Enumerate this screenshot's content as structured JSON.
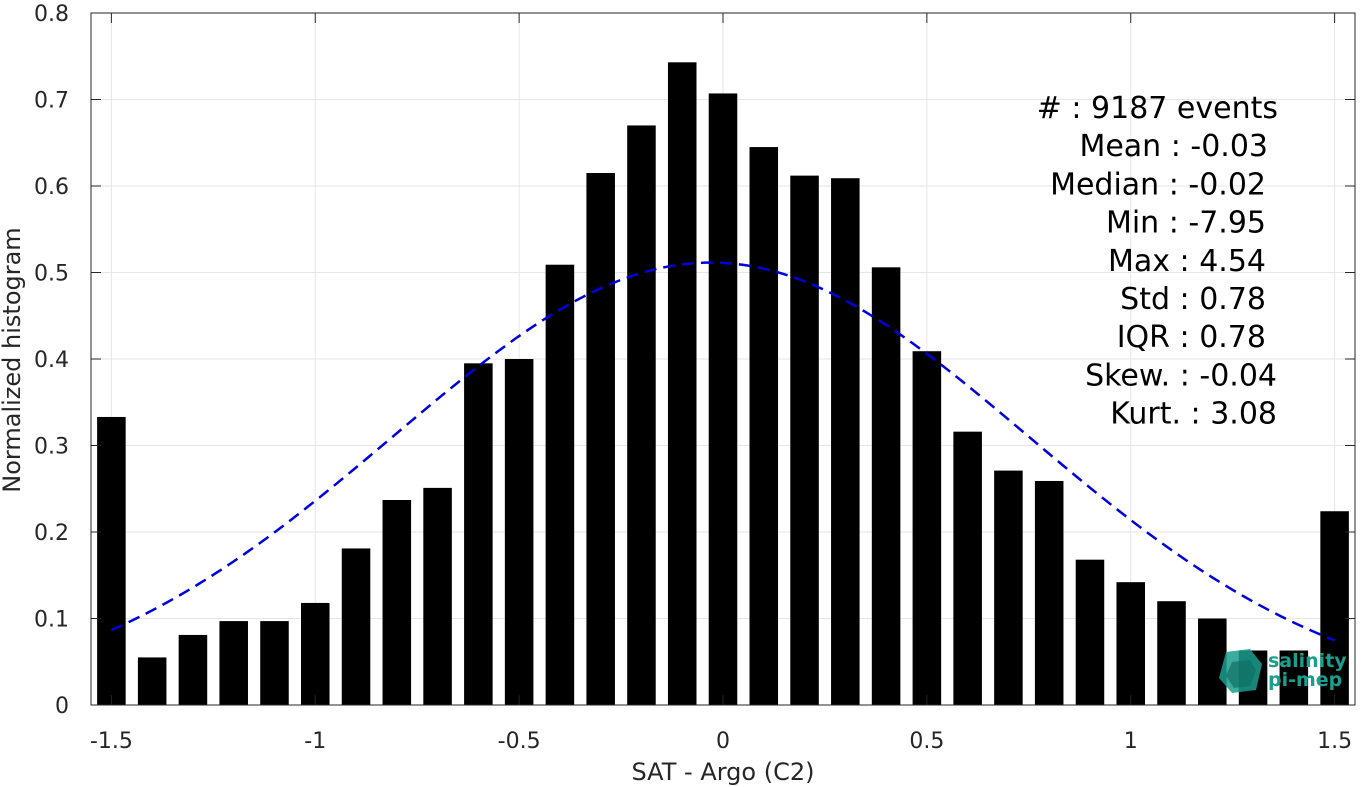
{
  "chart_data": {
    "type": "bar",
    "xlabel": "SAT - Argo (C2)",
    "ylabel": "Normalized histogram",
    "xlim": [
      -1.55,
      1.55
    ],
    "ylim": [
      0,
      0.8
    ],
    "xticks": [
      -1.5,
      -1,
      -0.5,
      0,
      0.5,
      1,
      1.5
    ],
    "xtick_labels": [
      "-1.5",
      "-1",
      "-0.5",
      "0",
      "0.5",
      "1",
      "1.5"
    ],
    "yticks": [
      0,
      0.1,
      0.2,
      0.3,
      0.4,
      0.5,
      0.6,
      0.7,
      0.8
    ],
    "ytick_labels": [
      "0",
      "0.1",
      "0.2",
      "0.3",
      "0.4",
      "0.5",
      "0.6",
      "0.7",
      "0.8"
    ],
    "grid": true,
    "bar_color": "#000000",
    "bars": {
      "x": [
        -1.5,
        -1.4,
        -1.3,
        -1.2,
        -1.1,
        -1.0,
        -0.9,
        -0.8,
        -0.7,
        -0.6,
        -0.5,
        -0.4,
        -0.3,
        -0.2,
        -0.1,
        0.0,
        0.1,
        0.2,
        0.3,
        0.4,
        0.5,
        0.6,
        0.7,
        0.8,
        0.9,
        1.0,
        1.1,
        1.2,
        1.3,
        1.4,
        1.5
      ],
      "values": [
        0.333,
        0.055,
        0.081,
        0.097,
        0.097,
        0.118,
        0.181,
        0.237,
        0.251,
        0.395,
        0.4,
        0.509,
        0.615,
        0.67,
        0.743,
        0.707,
        0.645,
        0.612,
        0.609,
        0.506,
        0.409,
        0.316,
        0.271,
        0.259,
        0.168,
        0.142,
        0.12,
        0.1,
        0.063,
        0.063,
        0.224
      ],
      "width": 0.07
    },
    "fit_curve": {
      "kind": "gaussian",
      "mean": -0.03,
      "std": 0.78,
      "x_range": [
        -1.5,
        1.5
      ],
      "color": "#0000dd",
      "line_style": "dashed"
    },
    "annotations": [
      "#  : 9187 events",
      "Mean : -0.03",
      "Median : -0.02",
      "Min : -7.95",
      "Max : 4.54",
      "Std : 0.78",
      "IQR : 0.78",
      "Skew. : -0.04",
      "Kurt. : 3.08"
    ]
  },
  "logo": {
    "line1": "salinity",
    "line2": "pi-mep",
    "color": "#1a9e8e"
  }
}
